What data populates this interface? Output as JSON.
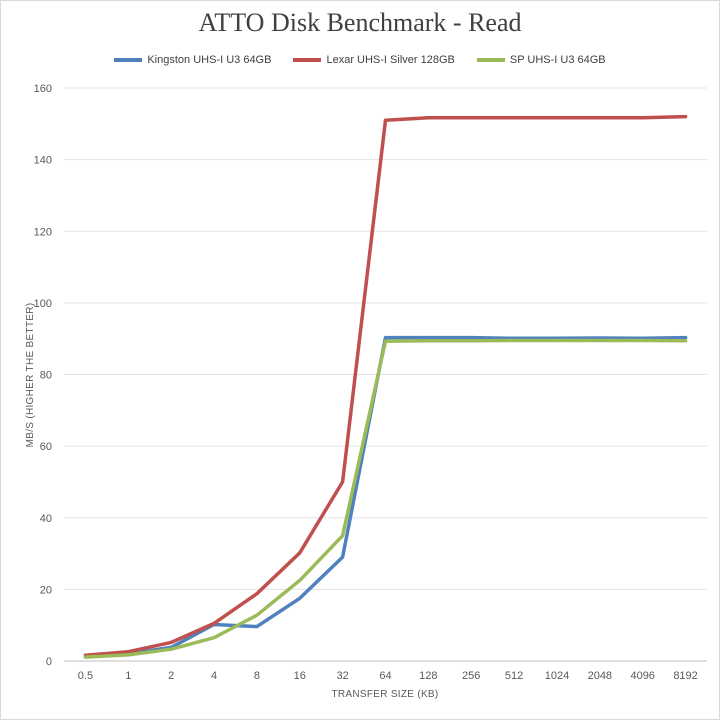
{
  "chart_data": {
    "type": "line",
    "title": "ATTO Disk Benchmark - Read",
    "xlabel": "TRANSFER SIZE (KB)",
    "ylabel": "MB/S (HIGHER THE BETTER)",
    "ylim": [
      0,
      160
    ],
    "yticks": [
      0,
      20,
      40,
      60,
      80,
      100,
      120,
      140,
      160
    ],
    "categories": [
      "0.5",
      "1",
      "2",
      "4",
      "8",
      "16",
      "32",
      "64",
      "128",
      "256",
      "512",
      "1024",
      "2048",
      "4096",
      "8192"
    ],
    "grid": "horizontal",
    "legend_position": "top",
    "series": [
      {
        "name": "Kingston UHS-I U3 64GB",
        "color": "#4f81bd",
        "values": [
          1.2,
          2.0,
          3.8,
          10.2,
          9.6,
          17.5,
          29,
          90.3,
          90.3,
          90.3,
          90.1,
          90.1,
          90.2,
          90.1,
          90.3
        ]
      },
      {
        "name": "Lexar UHS-I Silver 128GB",
        "color": "#c0504d",
        "values": [
          1.6,
          2.6,
          5.2,
          10.5,
          18.8,
          30.2,
          50,
          151,
          151.7,
          151.7,
          151.7,
          151.7,
          151.7,
          151.7,
          152
        ]
      },
      {
        "name": "SP UHS-I U3 64GB",
        "color": "#9bbb59",
        "values": [
          1.1,
          1.7,
          3.3,
          6.5,
          12.8,
          22.5,
          35,
          89.3,
          89.4,
          89.4,
          89.5,
          89.5,
          89.5,
          89.5,
          89.4
        ]
      }
    ]
  }
}
